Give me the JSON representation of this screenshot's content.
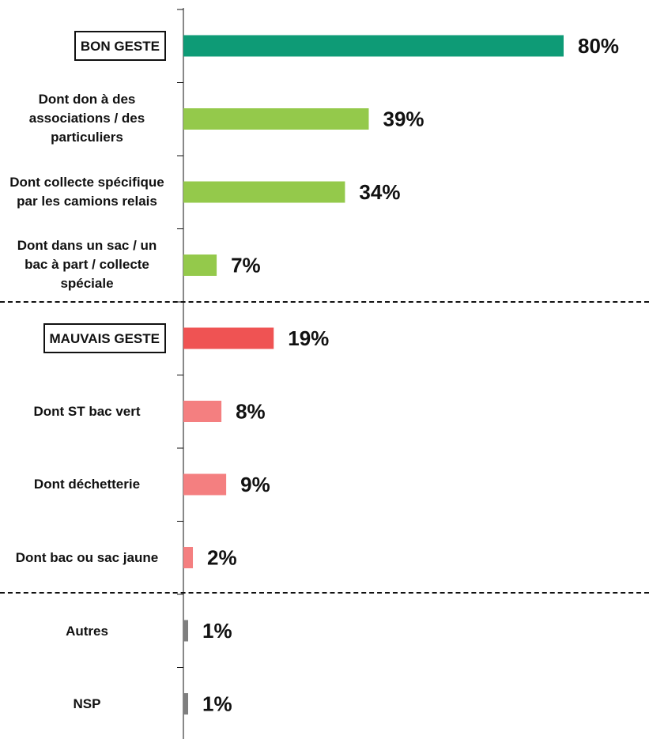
{
  "chart_data": {
    "type": "bar",
    "orientation": "horizontal",
    "categories": [
      "BON GESTE",
      "Dont don à des associations / des particuliers",
      "Dont collecte spécifique par les camions relais",
      "Dont dans un sac / un bac à part / collecte spéciale",
      "MAUVAIS GESTE",
      "Dont ST bac vert",
      "Dont déchetterie",
      "Dont bac ou sac jaune",
      "Autres",
      "NSP"
    ],
    "values": [
      80,
      39,
      34,
      7,
      19,
      8,
      9,
      2,
      1,
      1
    ],
    "value_labels": [
      "80%",
      "39%",
      "34%",
      "7%",
      "19%",
      "8%",
      "9%",
      "2%",
      "1%",
      "1%"
    ],
    "colors": [
      "#0e9b76",
      "#94c94b",
      "#94c94b",
      "#94c94b",
      "#ef5353",
      "#f47f80",
      "#f47f80",
      "#f47f80",
      "#7f7f7f",
      "#7f7f7f"
    ],
    "xlim": [
      0,
      80
    ]
  }
}
